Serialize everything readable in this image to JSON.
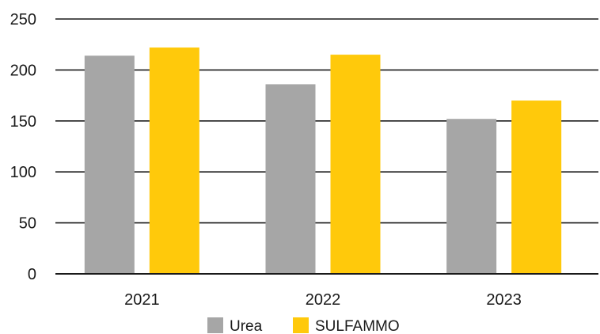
{
  "chart_data": {
    "type": "bar",
    "title": "",
    "xlabel": "",
    "ylabel": "",
    "categories": [
      "2021",
      "2022",
      "2023"
    ],
    "series": [
      {
        "name": "Urea",
        "values": [
          214,
          186,
          152
        ],
        "color": "#a6a6a6"
      },
      {
        "name": "SULFAMMO",
        "values": [
          222,
          215,
          170
        ],
        "color": "#ffc90b"
      }
    ],
    "ylim": [
      0,
      250
    ],
    "yticks": [
      0,
      50,
      100,
      150,
      200,
      250
    ],
    "grid": true,
    "legend_position": "bottom-center"
  }
}
